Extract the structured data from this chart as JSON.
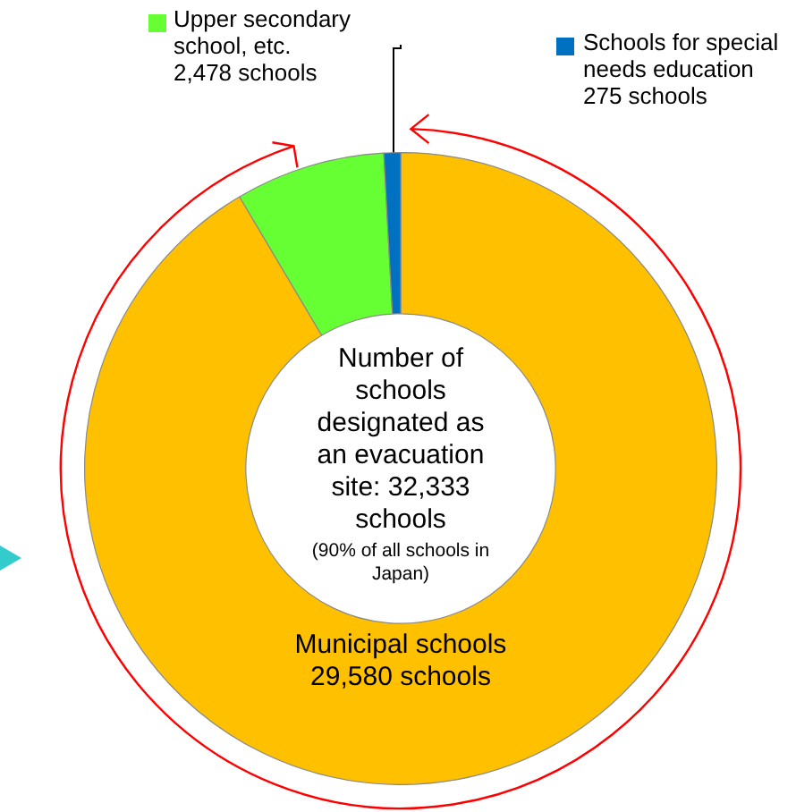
{
  "chart_data": {
    "type": "donut",
    "categories": [
      "Municipal schools",
      "Upper secondary school, etc.",
      "Schools for special needs education"
    ],
    "values": [
      29580,
      2478,
      275
    ],
    "colors": [
      "#ffc000",
      "#66ff33",
      "#0070c0"
    ],
    "legend": "top",
    "value_labels": [
      "29,580 schools",
      "2,478 schools",
      "275 schools"
    ],
    "annotations": [
      "Number of schools designated as an evacuation site: 32,333 schools",
      "(90% of all schools in Japan)"
    ]
  }
}
